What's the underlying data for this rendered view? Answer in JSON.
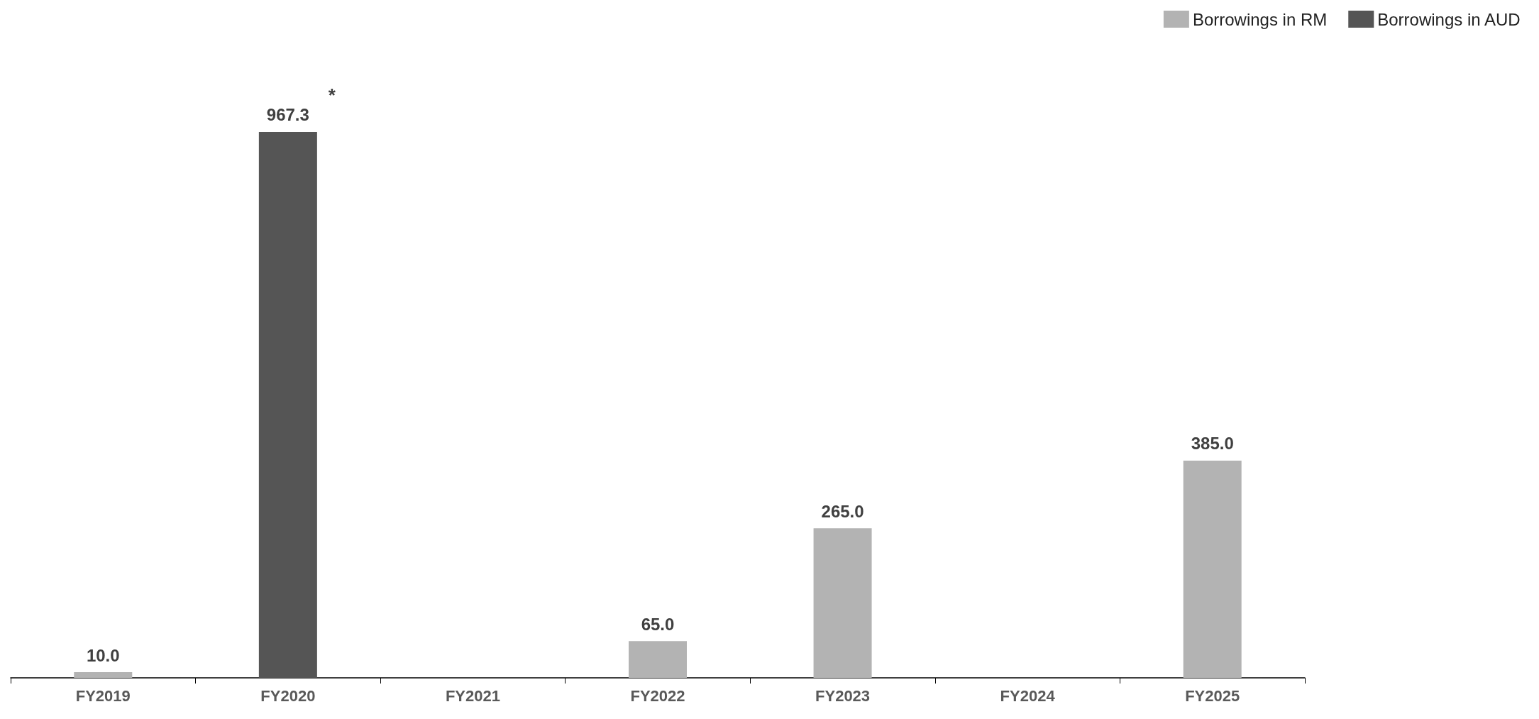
{
  "chart_data": {
    "type": "bar",
    "stacked": true,
    "categories": [
      "FY2019",
      "FY2020",
      "FY2021",
      "FY2022",
      "FY2023",
      "FY2024",
      "FY2025"
    ],
    "series": [
      {
        "name": "Borrowings in RM",
        "color": "#b3b3b3",
        "values": [
          10.0,
          null,
          null,
          65.0,
          265.0,
          null,
          385.0
        ],
        "value_labels": [
          "10.0",
          null,
          null,
          "65.0",
          "265.0",
          null,
          "385.0"
        ]
      },
      {
        "name": "Borrowings in AUD",
        "color": "#555555",
        "values": [
          null,
          967.3,
          null,
          null,
          null,
          null,
          null
        ],
        "value_labels": [
          null,
          "967.3",
          null,
          null,
          null,
          null,
          null
        ]
      }
    ],
    "legend": "top right",
    "grid": false,
    "annotations": [
      {
        "text": "*",
        "x": "FY2020",
        "y": 967.3
      }
    ]
  }
}
